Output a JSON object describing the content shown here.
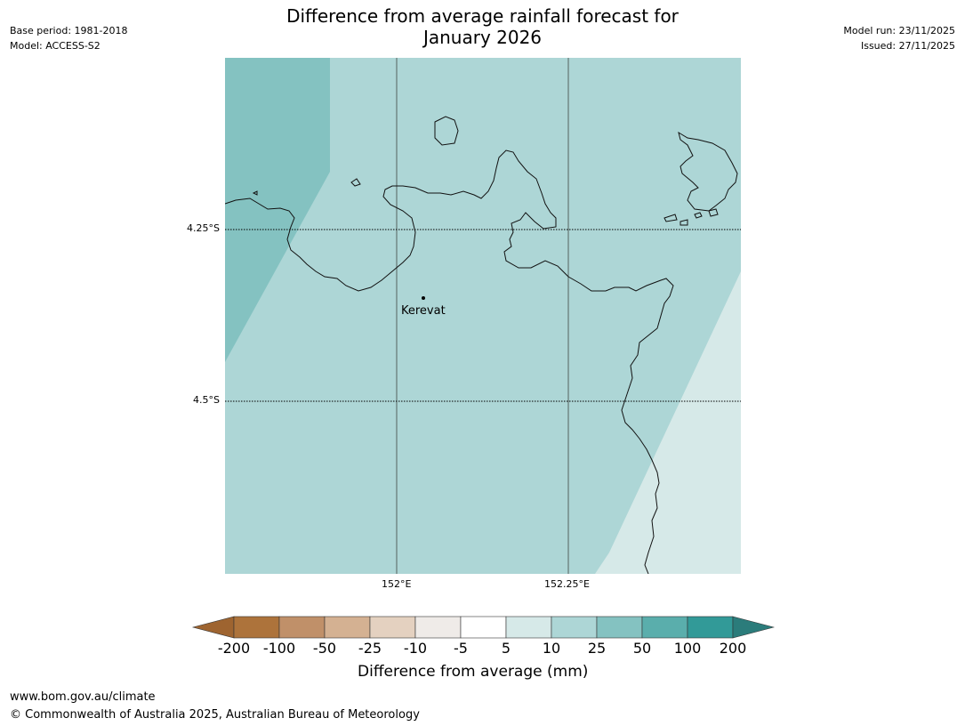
{
  "header": {
    "title_line1": "Difference from average rainfall forecast for",
    "title_line2": "January 2026",
    "base_period": "Base period: 1981-2018",
    "model": "Model: ACCESS-S2",
    "model_run": "Model run: 23/11/2025",
    "issued": "Issued: 27/11/2025"
  },
  "map": {
    "lat_labels": [
      "4.25°S",
      "4.5°S"
    ],
    "lon_labels": [
      "152°E",
      "152.25°E"
    ],
    "places": [
      {
        "name": "Kerevat"
      }
    ],
    "colors": {
      "category_10_25": "#add6d6",
      "category_25_50": "#84c2c1",
      "category_5_10": "#d6e9e8"
    }
  },
  "colorbar": {
    "title": "Difference from average (mm)",
    "tick_labels": [
      "-200",
      "-100",
      "-50",
      "-25",
      "-10",
      "-5",
      "5",
      "10",
      "25",
      "50",
      "100",
      "200"
    ],
    "colors": [
      "#9e6430",
      "#ad733b",
      "#c09069",
      "#d4b192",
      "#e4d1c0",
      "#efebe8",
      "#ffffff",
      "#d6e9e8",
      "#add6d6",
      "#84c2c1",
      "#5aaeac",
      "#329a98",
      "#2b7c7b"
    ]
  },
  "footer": {
    "url": "www.bom.gov.au/climate",
    "copyright": "© Commonwealth of Australia 2025, Australian Bureau of Meteorology"
  }
}
